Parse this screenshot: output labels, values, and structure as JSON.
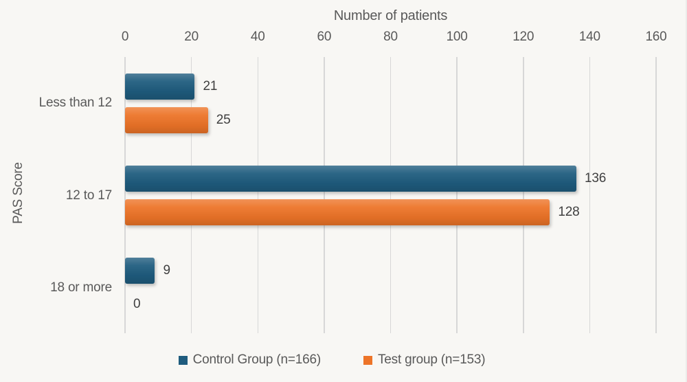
{
  "chart_data": {
    "type": "bar",
    "orientation": "horizontal",
    "xlabel": "Number of patients",
    "ylabel": "PAS Score",
    "categories": [
      "Less than 12",
      "12 to 17",
      "18 or more"
    ],
    "series": [
      {
        "name": "Control Group (n=166)",
        "color": "#1f5c7e",
        "values": [
          21,
          136,
          9
        ]
      },
      {
        "name": "Test group (n=153)",
        "color": "#ed7428",
        "values": [
          25,
          128,
          0
        ]
      }
    ],
    "xlim": [
      0,
      160
    ],
    "xticks": [
      0,
      20,
      40,
      60,
      80,
      100,
      120,
      140,
      160
    ],
    "grid": true,
    "data_labels": true,
    "legend_position": "bottom"
  },
  "colors": {
    "background": "#f8f7f4",
    "gridline": "#d7d7d7",
    "axis_text": "#595959",
    "data_label": "#3f3f3f"
  }
}
